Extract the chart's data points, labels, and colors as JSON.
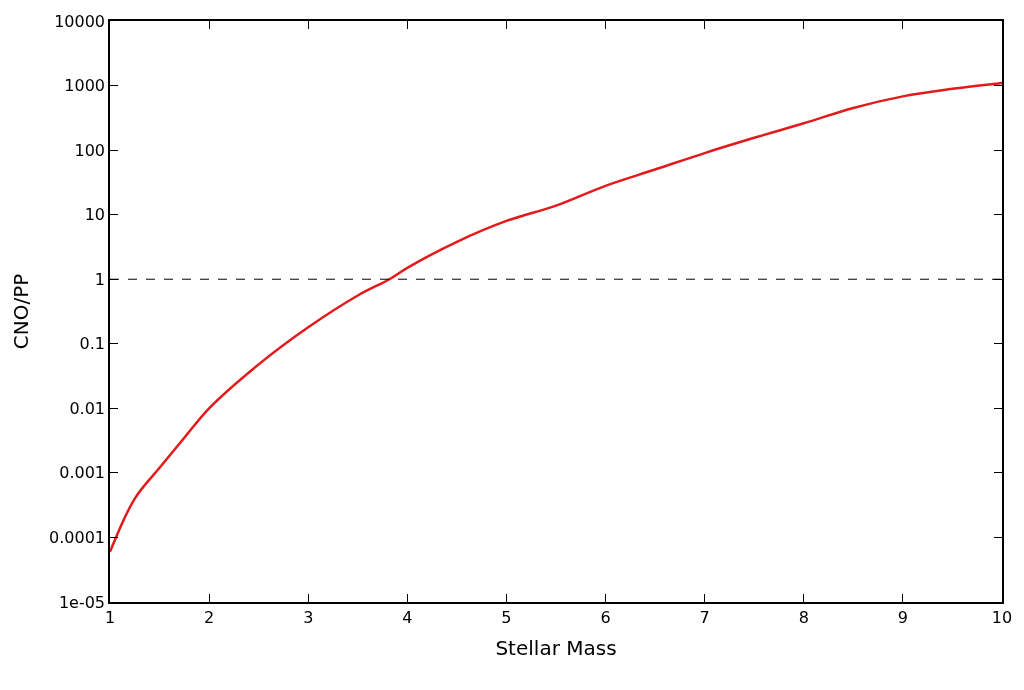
{
  "chart_data": {
    "type": "line",
    "xlabel": "Stellar Mass",
    "ylabel": "CNO/PP",
    "log": "y",
    "legend": false,
    "marker": "none",
    "line_style": "solid",
    "x": [
      1,
      1.25,
      1.5,
      1.75,
      2,
      2.5,
      3,
      3.5,
      3.82,
      4,
      4.5,
      5,
      5.5,
      6,
      6.5,
      7,
      7.5,
      8,
      8.5,
      9,
      9.5,
      10
    ],
    "series": [
      {
        "color": "#e31a1c",
        "values": [
          6e-05,
          0.0004,
          0.0012,
          0.0035,
          0.01,
          0.048,
          0.18,
          0.56,
          1,
          1.5,
          3.8,
          8,
          13.8,
          28,
          50,
          90,
          155,
          260,
          450,
          680,
          890,
          1100
        ]
      }
    ],
    "xlim": [
      1,
      10
    ],
    "xticks": [
      1,
      2,
      3,
      4,
      5,
      6,
      7,
      8,
      9,
      10
    ],
    "ylim": [
      1e-05,
      10000
    ],
    "yticks": [
      {
        "value": 1e-05,
        "label": "1e-05"
      },
      0.0001,
      0.001,
      0.01,
      0.1,
      1,
      10,
      100,
      1000,
      10000
    ],
    "ref_lines": [
      {
        "axis": "y",
        "value": 1,
        "color": "#000000",
        "line_style": "dashed"
      }
    ]
  }
}
